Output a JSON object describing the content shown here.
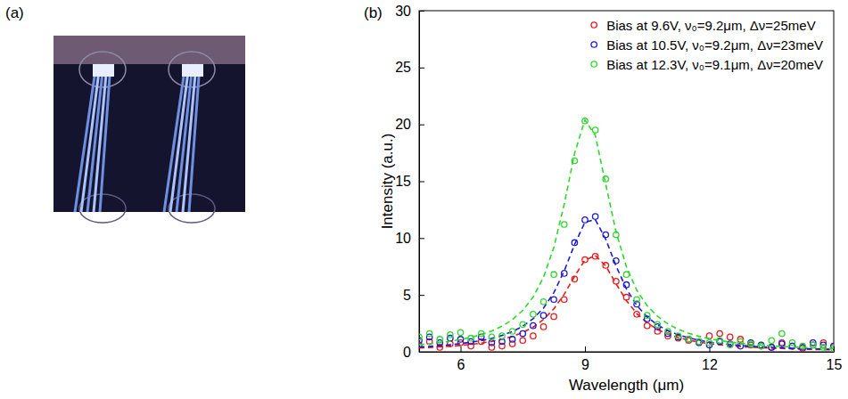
{
  "image_panel": {
    "label": "(a)"
  },
  "chart_data": {
    "type": "scatter",
    "label": "(b)",
    "x_label": "Wavelength (μm)",
    "y_label": "Intensity (a.u.)",
    "xlim": [
      5,
      15
    ],
    "xticks": [
      6,
      9,
      12,
      15
    ],
    "ylim": [
      0,
      30
    ],
    "yticks": [
      0,
      5,
      10,
      15,
      20,
      25,
      30
    ],
    "legend": "top-right",
    "x": [
      5,
      5.25,
      5.5,
      5.75,
      6,
      6.25,
      6.5,
      6.75,
      7,
      7.25,
      7.5,
      7.75,
      8,
      8.25,
      8.5,
      8.75,
      9,
      9.25,
      9.5,
      9.75,
      10,
      10.25,
      10.5,
      10.75,
      11,
      11.25,
      11.5,
      11.75,
      12,
      12.25,
      12.5,
      12.75,
      13,
      13.25,
      13.5,
      13.75,
      14,
      14.25,
      14.5,
      14.75,
      15
    ],
    "series": [
      {
        "name": "Bias at 9.6V, ν₀=9.2μm, Δν=25meV",
        "color": "#e8191b",
        "marker": "circle",
        "line_style": "dashed",
        "values": [
          0.6,
          0.9,
          0.4,
          0.7,
          0.8,
          0.5,
          0.9,
          0.4,
          0.5,
          0.7,
          1.0,
          1.4,
          2.2,
          3.1,
          4.6,
          6.4,
          8.1,
          8.4,
          7.6,
          6.2,
          4.8,
          3.3,
          2.3,
          1.8,
          1.4,
          1.2,
          1.0,
          0.9,
          1.4,
          1.6,
          1.3,
          1.1,
          0.6,
          0.5,
          0.4,
          0.8,
          0.5,
          0.3,
          0.6,
          0.8,
          0.5
        ],
        "fit_values": [
          0.33,
          0.38,
          0.43,
          0.49,
          0.56,
          0.65,
          0.77,
          0.91,
          1.1,
          1.36,
          1.7,
          2.17,
          2.84,
          3.78,
          5.06,
          6.64,
          8.06,
          8.47,
          7.56,
          5.99,
          4.51,
          3.36,
          2.54,
          1.96,
          1.55,
          1.25,
          1.02,
          0.85,
          0.72,
          0.61,
          0.53,
          0.46,
          0.4,
          0.36,
          0.32,
          0.29,
          0.26,
          0.23,
          0.21,
          0.19,
          0.18
        ]
      },
      {
        "name": "Bias at 10.5V, ν₀=9.2μm, Δν=23meV",
        "color": "#1a1ad6",
        "marker": "circle",
        "line_style": "dashed",
        "values": [
          1.0,
          1.3,
          0.8,
          1.2,
          1.1,
          0.9,
          1.3,
          0.8,
          0.9,
          1.1,
          1.6,
          2.3,
          3.2,
          4.6,
          6.9,
          9.6,
          11.6,
          11.9,
          10.3,
          8.0,
          5.9,
          4.2,
          2.9,
          2.2,
          1.6,
          1.3,
          1.1,
          0.8,
          0.6,
          0.9,
          0.7,
          0.5,
          0.8,
          0.6,
          0.4,
          0.7,
          0.5,
          0.4,
          0.8,
          0.6,
          0.5
        ],
        "fit_values": [
          0.42,
          0.48,
          0.54,
          0.62,
          0.72,
          0.84,
          0.99,
          1.18,
          1.44,
          1.78,
          2.25,
          2.91,
          3.84,
          5.2,
          7.11,
          9.44,
          11.4,
          11.62,
          9.91,
          7.55,
          5.54,
          4.08,
          3.06,
          2.36,
          1.86,
          1.5,
          1.23,
          1.02,
          0.86,
          0.74,
          0.64,
          0.56,
          0.49,
          0.43,
          0.39,
          0.35,
          0.31,
          0.28,
          0.26,
          0.24,
          0.22
        ]
      },
      {
        "name": "Bias at 12.3V, ν₀=9.1μm, Δν=20meV",
        "color": "#2ed82e",
        "marker": "circle",
        "line_style": "dashed",
        "values": [
          1.3,
          1.6,
          1.1,
          1.5,
          1.7,
          1.2,
          1.6,
          1.3,
          1.4,
          1.8,
          2.4,
          3.3,
          4.4,
          6.8,
          11.2,
          16.8,
          20.3,
          19.5,
          15.2,
          10.3,
          6.8,
          4.6,
          3.2,
          2.4,
          1.8,
          1.4,
          1.1,
          0.9,
          0.8,
          1.0,
          0.6,
          0.9,
          0.7,
          0.5,
          1.0,
          1.6,
          0.8,
          0.5,
          0.6,
          0.4,
          0.3
        ],
        "fit_values": [
          0.63,
          0.71,
          0.81,
          0.93,
          1.08,
          1.27,
          1.52,
          1.83,
          2.25,
          2.83,
          3.64,
          4.81,
          6.55,
          9.19,
          12.97,
          17.46,
          20.4,
          19.03,
          14.75,
          10.54,
          7.48,
          5.42,
          4.05,
          3.12,
          2.46,
          1.98,
          1.63,
          1.36,
          1.15,
          0.99,
          0.86,
          0.75,
          0.66,
          0.59,
          0.52,
          0.47,
          0.42,
          0.39,
          0.35,
          0.32,
          0.3
        ]
      }
    ]
  }
}
